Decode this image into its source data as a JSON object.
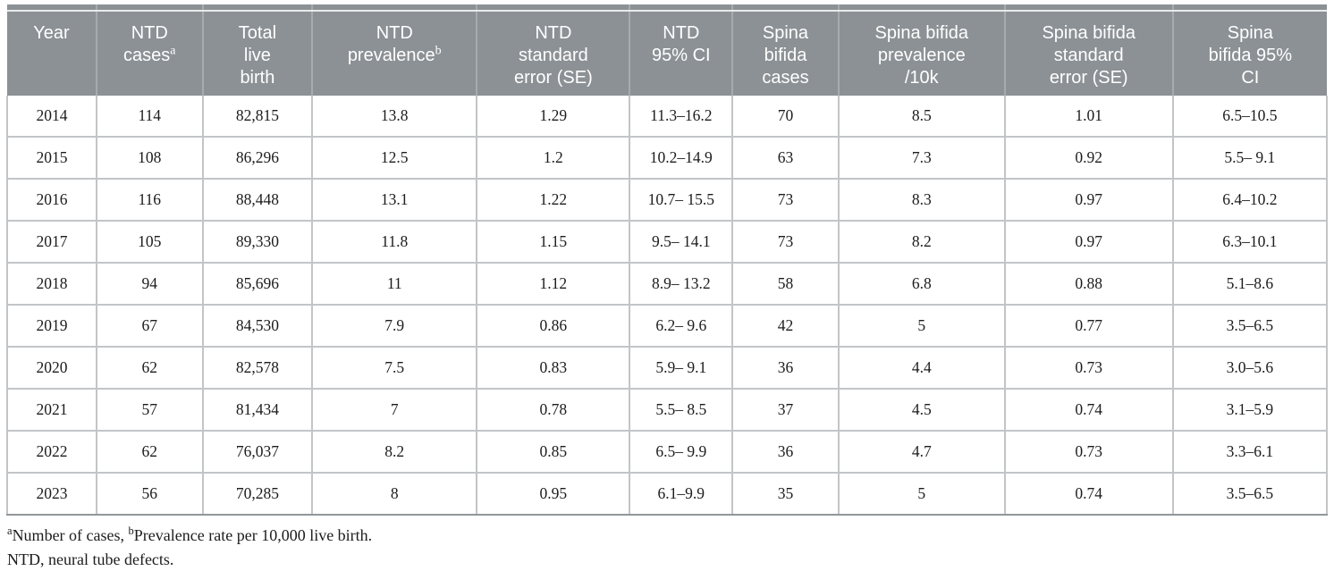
{
  "table": {
    "headers": [
      {
        "text": "Year"
      },
      {
        "text": "NTD\ncases",
        "sup": "a"
      },
      {
        "text": "Total\nlive\nbirth"
      },
      {
        "text": "NTD\nprevalence",
        "sup": "b"
      },
      {
        "text": "NTD\nstandard\nerror (SE)"
      },
      {
        "text": "NTD\n95% CI"
      },
      {
        "text": "Spina\nbifida\ncases"
      },
      {
        "text": "Spina bifida\nprevalence\n/10k"
      },
      {
        "text": "Spina bifida\nstandard\nerror (SE)"
      },
      {
        "text": "Spina\nbifida 95%\nCI"
      }
    ],
    "rows": [
      [
        "2014",
        "114",
        "82,815",
        "13.8",
        "1.29",
        "11.3–16.2",
        "70",
        "8.5",
        "1.01",
        "6.5–10.5"
      ],
      [
        "2015",
        "108",
        "86,296",
        "12.5",
        "1.2",
        "10.2–14.9",
        "63",
        "7.3",
        "0.92",
        "5.5– 9.1"
      ],
      [
        "2016",
        "116",
        "88,448",
        "13.1",
        "1.22",
        "10.7– 15.5",
        "73",
        "8.3",
        "0.97",
        "6.4–10.2"
      ],
      [
        "2017",
        "105",
        "89,330",
        "11.8",
        "1.15",
        "9.5– 14.1",
        "73",
        "8.2",
        "0.97",
        "6.3–10.1"
      ],
      [
        "2018",
        "94",
        "85,696",
        "11",
        "1.12",
        "8.9– 13.2",
        "58",
        "6.8",
        "0.88",
        "5.1–8.6"
      ],
      [
        "2019",
        "67",
        "84,530",
        "7.9",
        "0.86",
        "6.2– 9.6",
        "42",
        "5",
        "0.77",
        "3.5–6.5"
      ],
      [
        "2020",
        "62",
        "82,578",
        "7.5",
        "0.83",
        "5.9– 9.1",
        "36",
        "4.4",
        "0.73",
        "3.0–5.6"
      ],
      [
        "2021",
        "57",
        "81,434",
        "7",
        "0.78",
        "5.5– 8.5",
        "37",
        "4.5",
        "0.74",
        "3.1–5.9"
      ],
      [
        "2022",
        "62",
        "76,037",
        "8.2",
        "0.85",
        "6.5– 9.9",
        "36",
        "4.7",
        "0.73",
        "3.3–6.1"
      ],
      [
        "2023",
        "56",
        "70,285",
        "8",
        "0.95",
        "6.1–9.9",
        "35",
        "5",
        "0.74",
        "3.5–6.5"
      ]
    ]
  },
  "footnotes": {
    "line1": [
      {
        "sup": "a"
      },
      {
        "text": "Number of cases, "
      },
      {
        "sup": "b"
      },
      {
        "text": "Prevalence rate per 10,000 live birth."
      }
    ],
    "line2": [
      {
        "text": "NTD, neural tube defects."
      }
    ]
  },
  "colors": {
    "header_background": "#8c9195",
    "header_text": "#ffffff",
    "header_separator": "#a6abae",
    "cell_border": "#c2c5c7",
    "table_bottom_border": "#91979a",
    "body_text": "#1c1c1c"
  }
}
